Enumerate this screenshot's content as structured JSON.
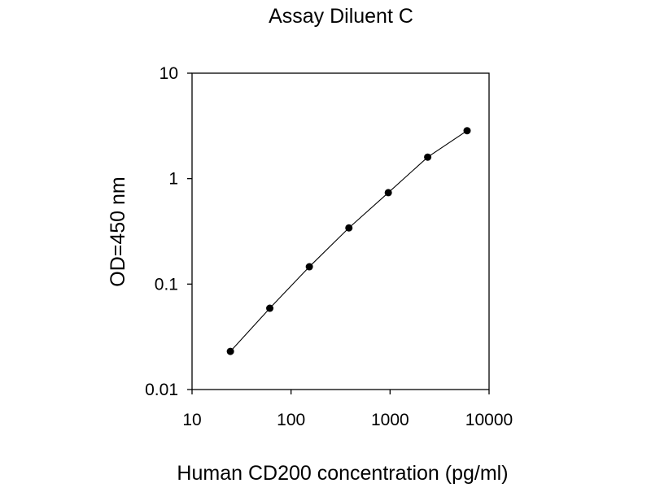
{
  "chart_data": {
    "type": "line",
    "title": "Assay Diluent C",
    "xlabel": "Human CD200 concentration (pg/ml)",
    "ylabel": "OD=450 nm",
    "x_scale": "log",
    "y_scale": "log",
    "xlim": [
      10,
      10000
    ],
    "ylim": [
      0.01,
      10
    ],
    "x_ticks": [
      10,
      100,
      1000,
      10000
    ],
    "x_tick_labels": [
      "10",
      "100",
      "1000",
      "10000"
    ],
    "y_ticks": [
      0.01,
      0.1,
      1,
      10
    ],
    "y_tick_labels": [
      "0.01",
      "0.1",
      "1",
      "10"
    ],
    "grid": false,
    "legend": "none",
    "series": [
      {
        "x": [
          24.4,
          61,
          153,
          384,
          960,
          2400,
          6000
        ],
        "y": [
          0.023,
          0.059,
          0.146,
          0.341,
          0.736,
          1.6,
          2.85
        ],
        "color": "#000000",
        "marker": "circle"
      }
    ]
  }
}
